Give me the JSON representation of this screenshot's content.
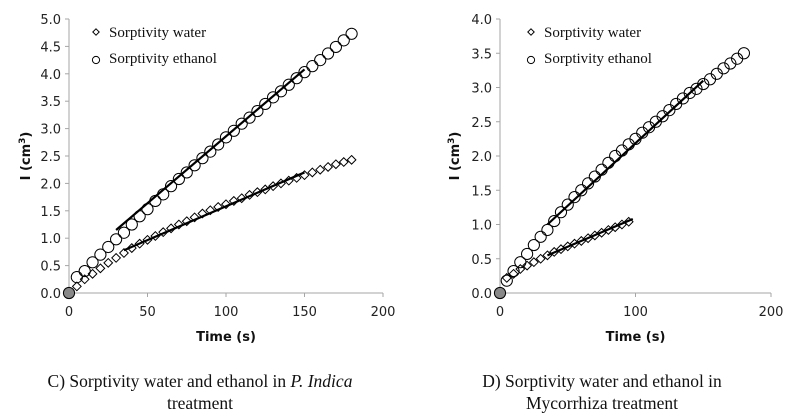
{
  "chart_data": [
    {
      "id": "C",
      "type": "scatter",
      "xlabel": "Time (s)",
      "ylabel": "I (cm",
      "ylabel_sup": "3",
      "ylabel_close": ")",
      "xlim": [
        0,
        200
      ],
      "ylim": [
        0,
        5.0
      ],
      "xticks": [
        0,
        50,
        100,
        150,
        200
      ],
      "yticks": [
        "0.0",
        "0.5",
        "1.0",
        "1.5",
        "2.0",
        "2.5",
        "3.0",
        "3.5",
        "4.0",
        "4.5",
        "5.0"
      ],
      "ytick_values": [
        0,
        0.5,
        1.0,
        1.5,
        2.0,
        2.5,
        3.0,
        3.5,
        4.0,
        4.5,
        5.0
      ],
      "grid": false,
      "legend_position": "top-left",
      "caption_prefix": "C) Sorptivity water and ethanol in ",
      "caption_italic": "P. Indica",
      "caption_line2": "treatment",
      "series": [
        {
          "name": "Sorptivity water",
          "marker": "diamond",
          "x": [
            0,
            5,
            10,
            15,
            20,
            25,
            30,
            35,
            40,
            45,
            50,
            55,
            60,
            65,
            70,
            75,
            80,
            85,
            90,
            95,
            100,
            105,
            110,
            115,
            120,
            125,
            130,
            135,
            140,
            145,
            150,
            155,
            160,
            165,
            170,
            175,
            180
          ],
          "y": [
            0,
            0.12,
            0.25,
            0.35,
            0.45,
            0.55,
            0.64,
            0.73,
            0.82,
            0.9,
            0.97,
            1.04,
            1.11,
            1.18,
            1.25,
            1.31,
            1.38,
            1.45,
            1.51,
            1.57,
            1.62,
            1.68,
            1.73,
            1.79,
            1.84,
            1.89,
            1.95,
            2.0,
            2.05,
            2.1,
            2.15,
            2.2,
            2.25,
            2.3,
            2.35,
            2.39,
            2.43
          ],
          "trendline": {
            "x": [
              35,
              150
            ],
            "y": [
              0.78,
              2.2
            ]
          }
        },
        {
          "name": "Sorptivity ethanol",
          "marker": "circle",
          "x": [
            0,
            5,
            10,
            15,
            20,
            25,
            30,
            35,
            40,
            45,
            50,
            55,
            60,
            65,
            70,
            75,
            80,
            85,
            90,
            95,
            100,
            105,
            110,
            115,
            120,
            125,
            130,
            135,
            140,
            145,
            150,
            155,
            160,
            165,
            170,
            175,
            180
          ],
          "y": [
            0,
            0.29,
            0.4,
            0.56,
            0.7,
            0.84,
            0.98,
            1.1,
            1.25,
            1.4,
            1.53,
            1.68,
            1.8,
            1.95,
            2.08,
            2.2,
            2.33,
            2.46,
            2.58,
            2.71,
            2.84,
            2.96,
            3.09,
            3.2,
            3.32,
            3.45,
            3.57,
            3.68,
            3.8,
            3.92,
            4.03,
            4.14,
            4.25,
            4.37,
            4.49,
            4.61,
            4.73
          ],
          "trendline": {
            "x": [
              30,
              150
            ],
            "y": [
              1.15,
              4.08
            ]
          }
        }
      ]
    },
    {
      "id": "D",
      "type": "scatter",
      "xlabel": "Time (s)",
      "ylabel": "I (cm",
      "ylabel_sup": "3",
      "ylabel_close": ")",
      "xlim": [
        0,
        200
      ],
      "ylim": [
        0,
        4.0
      ],
      "xticks": [
        0,
        100,
        200
      ],
      "yticks": [
        "0.0",
        "0.5",
        "1.0",
        "1.5",
        "2.0",
        "2.5",
        "3.0",
        "3.5",
        "4.0"
      ],
      "ytick_values": [
        0,
        0.5,
        1.0,
        1.5,
        2.0,
        2.5,
        3.0,
        3.5,
        4.0
      ],
      "grid": false,
      "legend_position": "top-left",
      "caption_line1": "D) Sorptivity water and ethanol in",
      "caption_line2": "Mycorrhiza treatment",
      "series": [
        {
          "name": "Sorptivity water",
          "marker": "diamond",
          "x": [
            0,
            5,
            10,
            15,
            20,
            25,
            30,
            35,
            40,
            45,
            50,
            55,
            60,
            65,
            70,
            75,
            80,
            85,
            90,
            95
          ],
          "y": [
            0,
            0.22,
            0.28,
            0.35,
            0.4,
            0.45,
            0.5,
            0.55,
            0.6,
            0.64,
            0.68,
            0.72,
            0.76,
            0.8,
            0.84,
            0.88,
            0.92,
            0.96,
            1.0,
            1.04
          ],
          "trendline": {
            "x": [
              35,
              98
            ],
            "y": [
              0.55,
              1.08
            ]
          }
        },
        {
          "name": "Sorptivity ethanol",
          "marker": "circle",
          "x": [
            0,
            5,
            10,
            15,
            20,
            25,
            30,
            35,
            40,
            45,
            50,
            55,
            60,
            65,
            70,
            75,
            80,
            85,
            90,
            95,
            100,
            105,
            110,
            115,
            120,
            125,
            130,
            135,
            140,
            145,
            150,
            155,
            160,
            165,
            170,
            175,
            180
          ],
          "y": [
            0,
            0.18,
            0.32,
            0.45,
            0.57,
            0.7,
            0.82,
            0.92,
            1.05,
            1.18,
            1.29,
            1.4,
            1.5,
            1.6,
            1.7,
            1.8,
            1.9,
            2.0,
            2.08,
            2.17,
            2.25,
            2.34,
            2.42,
            2.5,
            2.58,
            2.67,
            2.76,
            2.84,
            2.92,
            2.98,
            3.05,
            3.12,
            3.2,
            3.28,
            3.35,
            3.42,
            3.5
          ],
          "trendline": {
            "x": [
              35,
              150
            ],
            "y": [
              1.0,
              3.1
            ]
          }
        }
      ]
    }
  ]
}
